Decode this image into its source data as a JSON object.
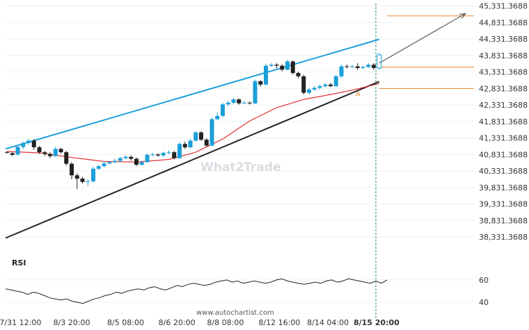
{
  "watermark": "What2Trade",
  "credit": "www.autochartist.com",
  "rsi_label": "RSI",
  "colors": {
    "up": "#1a9fd9",
    "down": "#222222",
    "channel_upper": "#1a9fd9",
    "channel_lower": "#222222",
    "ma": "#e03030",
    "target": "#e8862a",
    "rsi": "#222222"
  },
  "chart_data": {
    "type": "candlestick",
    "y_ticks": [
      "45,331.3688",
      "44,831.3688",
      "44,331.3688",
      "43,831.3688",
      "43,331.3688",
      "42,831.3688",
      "42,331.3688",
      "41,831.3688",
      "41,331.3688",
      "40,831.3688",
      "40,331.3688",
      "39,831.3688",
      "39,331.3688",
      "38,831.3688",
      "38,331.3688"
    ],
    "ylim": [
      38081.3688,
      45406.3688
    ],
    "x_ticks": [
      "7/31 12:00",
      "8/3 20:00",
      "8/5 08:00",
      "8/6 20:00",
      "8/8 08:00",
      "8/12 16:00",
      "8/14 04:00",
      "8/15 20:00"
    ],
    "x_tick_index": [
      2.5,
      12,
      22,
      31.5,
      40.5,
      50.5,
      59.5,
      68.5
    ],
    "candles": [
      [
        40900,
        40880,
        40940,
        40860
      ],
      [
        40870,
        40820,
        40900,
        40780
      ],
      [
        40830,
        41060,
        41100,
        40800
      ],
      [
        41060,
        41180,
        41220,
        41000
      ],
      [
        41180,
        41250,
        41300,
        41120
      ],
      [
        41250,
        41050,
        41300,
        40980
      ],
      [
        41050,
        40900,
        41090,
        40850
      ],
      [
        40900,
        40850,
        40940,
        40780
      ],
      [
        40850,
        40780,
        40900,
        40720
      ],
      [
        40780,
        41000,
        41060,
        40760
      ],
      [
        41000,
        40900,
        41030,
        40860
      ],
      [
        40900,
        40550,
        40940,
        40500
      ],
      [
        40550,
        40200,
        40600,
        40080
      ],
      [
        40200,
        40100,
        40260,
        39780
      ],
      [
        40100,
        40000,
        40150,
        39950
      ],
      [
        40000,
        40020,
        40080,
        39880
      ],
      [
        40020,
        40400,
        40460,
        39980
      ],
      [
        40400,
        40480,
        40520,
        40360
      ],
      [
        40480,
        40560,
        40620,
        40440
      ],
      [
        40560,
        40600,
        40640,
        40540
      ],
      [
        40600,
        40640,
        40700,
        40560
      ],
      [
        40640,
        40720,
        40760,
        40600
      ],
      [
        40720,
        40760,
        40800,
        40680
      ],
      [
        40760,
        40700,
        40800,
        40640
      ],
      [
        40700,
        40520,
        40740,
        40480
      ],
      [
        40520,
        40600,
        40650,
        40500
      ],
      [
        40600,
        40820,
        40860,
        40580
      ],
      [
        40820,
        40830,
        40880,
        40780
      ],
      [
        40830,
        40800,
        40870,
        40760
      ],
      [
        40800,
        40880,
        40920,
        40760
      ],
      [
        40880,
        40900,
        40960,
        40840
      ],
      [
        40900,
        40720,
        40940,
        40680
      ],
      [
        40720,
        41150,
        41200,
        40700
      ],
      [
        41150,
        41050,
        41220,
        41000
      ],
      [
        41050,
        41250,
        41300,
        41020
      ],
      [
        41250,
        41500,
        41540,
        41220
      ],
      [
        41500,
        41280,
        41540,
        41240
      ],
      [
        41280,
        41100,
        41320,
        41050
      ],
      [
        41100,
        41900,
        41950,
        41080
      ],
      [
        41900,
        42000,
        42100,
        41880
      ],
      [
        42000,
        42350,
        42400,
        41950
      ],
      [
        42350,
        42400,
        42450,
        42300
      ],
      [
        42400,
        42500,
        42540,
        42350
      ],
      [
        42500,
        42380,
        42530,
        42340
      ],
      [
        42380,
        42400,
        42450,
        42360
      ],
      [
        42400,
        42380,
        42440,
        42340
      ],
      [
        42380,
        43050,
        43100,
        42360
      ],
      [
        43050,
        42950,
        43080,
        42880
      ],
      [
        42950,
        43520,
        43580,
        42920
      ],
      [
        43520,
        43550,
        43600,
        43480
      ],
      [
        43550,
        43520,
        43600,
        43450
      ],
      [
        43520,
        43400,
        43560,
        43350
      ],
      [
        43400,
        43650,
        43700,
        43380
      ],
      [
        43650,
        43300,
        43680,
        43250
      ],
      [
        43300,
        43200,
        43340,
        43150
      ],
      [
        43200,
        42700,
        43250,
        42650
      ],
      [
        42700,
        42800,
        42850,
        42650
      ],
      [
        42800,
        42850,
        42900,
        42750
      ],
      [
        42850,
        42900,
        42950,
        42800
      ],
      [
        42900,
        42950,
        43000,
        42860
      ],
      [
        42950,
        42900,
        43000,
        42880
      ],
      [
        42900,
        43200,
        43250,
        42880
      ],
      [
        43200,
        43500,
        43550,
        43150
      ],
      [
        43500,
        43480,
        43560,
        43440
      ],
      [
        43480,
        43500,
        43540,
        43460
      ],
      [
        43500,
        43450,
        43600,
        43400
      ],
      [
        43450,
        43480,
        43520,
        43420
      ],
      [
        43480,
        43550,
        43600,
        43460
      ],
      [
        43550,
        43450,
        43600,
        43400
      ],
      [
        43450,
        43850,
        43900,
        43400
      ]
    ],
    "candle_x_start": 10,
    "candle_spacing": 7.75,
    "ma": [
      [
        0,
        40920
      ],
      [
        6,
        40880
      ],
      [
        12,
        40740
      ],
      [
        18,
        40620
      ],
      [
        24,
        40600
      ],
      [
        30,
        40680
      ],
      [
        35,
        40900
      ],
      [
        40,
        41300
      ],
      [
        45,
        41850
      ],
      [
        50,
        42250
      ],
      [
        55,
        42500
      ],
      [
        60,
        42650
      ],
      [
        64,
        42780
      ],
      [
        69,
        42980
      ]
    ],
    "channel_upper": [
      [
        0,
        41000
      ],
      [
        69,
        44320
      ]
    ],
    "channel_lower": [
      [
        0,
        38300
      ],
      [
        69,
        43040
      ]
    ],
    "target_levels": [
      45031.3688,
      43479.3688,
      42831.3688
    ],
    "projection": [
      [
        69,
        43600
      ],
      [
        85,
        45100
      ]
    ],
    "pattern_mark": {
      "label": "A",
      "index": 65,
      "value": 42681.3688
    },
    "rsi": [
      52,
      51,
      50,
      49,
      47,
      49,
      48,
      46,
      44,
      43,
      42,
      43,
      41,
      40,
      39,
      41,
      43,
      44,
      46,
      47,
      49,
      48,
      50,
      51,
      52,
      51,
      53,
      54,
      52,
      51,
      53,
      55,
      54,
      56,
      57,
      56,
      55,
      56,
      58,
      59,
      60,
      58,
      59,
      57,
      58,
      59,
      58,
      57,
      58,
      60,
      61,
      59,
      58,
      57,
      56,
      57,
      58,
      57,
      59,
      60,
      58,
      59,
      61,
      60,
      59,
      58,
      57,
      59,
      57,
      60
    ],
    "rsi_ticks": [
      60,
      40
    ],
    "rsi_ylim": [
      32,
      68
    ]
  }
}
